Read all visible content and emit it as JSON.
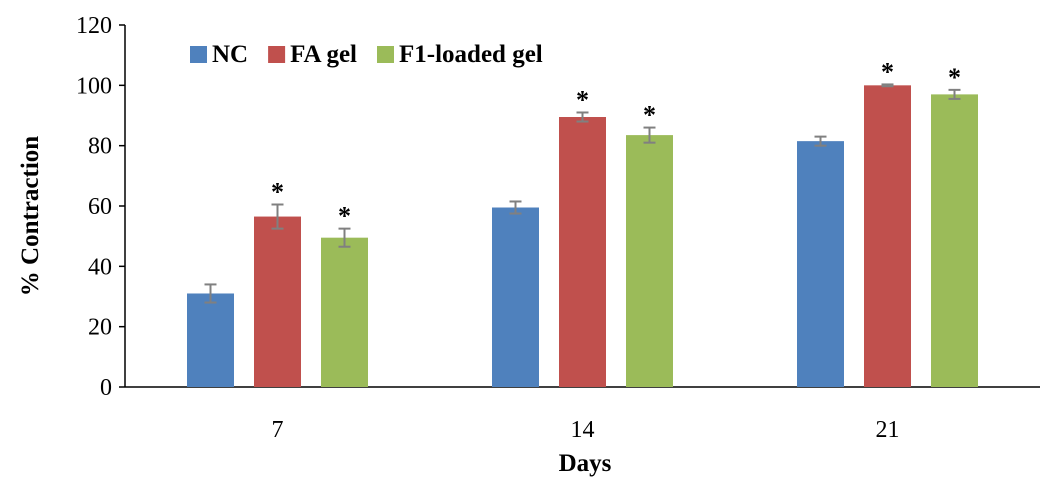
{
  "chart_data": {
    "type": "bar",
    "title": "",
    "xlabel": "Days",
    "ylabel": "% Contraction",
    "categories": [
      "7",
      "14",
      "21"
    ],
    "ylim": [
      0,
      120
    ],
    "yticks": [
      0,
      20,
      40,
      60,
      80,
      100,
      120
    ],
    "grid": false,
    "legend_position": "top-left",
    "significance_mark": "*",
    "series": [
      {
        "name": "NC",
        "color": "#4f81bd",
        "values": [
          31,
          59.5,
          81.5
        ],
        "errors": [
          3,
          2,
          1.5
        ],
        "significant": [
          false,
          false,
          false
        ]
      },
      {
        "name": "FA gel",
        "color": "#c0504d",
        "values": [
          56.5,
          89.5,
          100
        ],
        "errors": [
          4,
          1.5,
          0.3
        ],
        "significant": [
          true,
          true,
          true
        ]
      },
      {
        "name": "F1-loaded gel",
        "color": "#9bbb59",
        "values": [
          49.5,
          83.5,
          97
        ],
        "errors": [
          3,
          2.5,
          1.5
        ],
        "significant": [
          true,
          true,
          true
        ]
      }
    ]
  }
}
